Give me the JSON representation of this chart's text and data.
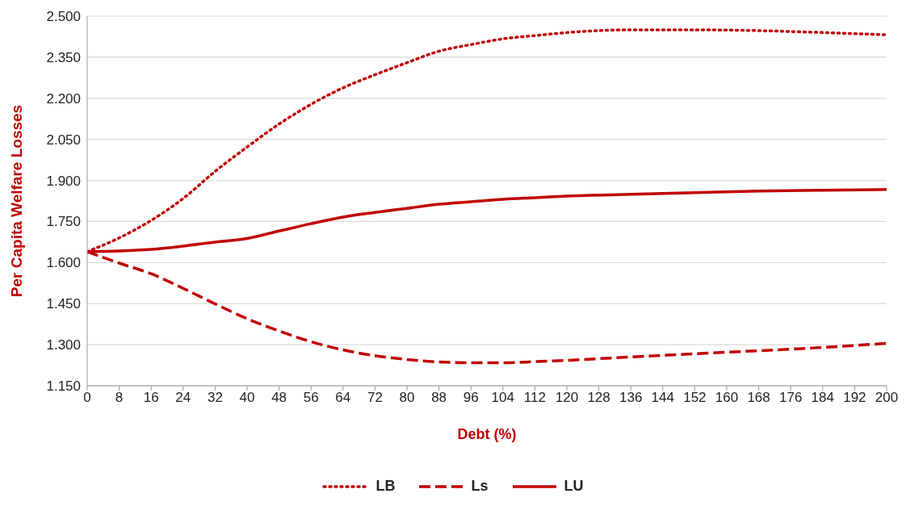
{
  "chart_data": {
    "type": "line",
    "xlabel": "Debt (%)",
    "ylabel": "Per Capita Welfare Losses",
    "x": [
      0,
      8,
      16,
      24,
      32,
      40,
      48,
      56,
      64,
      72,
      80,
      88,
      96,
      104,
      112,
      120,
      136,
      152,
      168,
      184,
      200
    ],
    "series": [
      {
        "name": "LB",
        "color": "#c00000",
        "line_style": "dotted",
        "values": [
          1.64,
          1.69,
          1.754,
          1.834,
          1.933,
          2.022,
          2.106,
          2.178,
          2.238,
          2.286,
          2.33,
          2.372,
          2.396,
          2.417,
          2.429,
          2.44,
          2.45,
          2.45,
          2.447,
          2.44,
          2.432
        ]
      },
      {
        "name": "Ls",
        "color": "#c00000",
        "line_style": "dashed",
        "values": [
          1.64,
          1.598,
          1.559,
          1.506,
          1.449,
          1.395,
          1.35,
          1.311,
          1.281,
          1.26,
          1.246,
          1.237,
          1.234,
          1.234,
          1.238,
          1.243,
          1.255,
          1.267,
          1.278,
          1.29,
          1.305
        ]
      },
      {
        "name": "LU",
        "color": "#c00000",
        "line_style": "solid",
        "values": [
          1.64,
          1.642,
          1.648,
          1.66,
          1.675,
          1.688,
          1.715,
          1.742,
          1.766,
          1.783,
          1.798,
          1.813,
          1.822,
          1.831,
          1.837,
          1.843,
          1.849,
          1.855,
          1.861,
          1.864,
          1.867
        ]
      }
    ],
    "xlim": [
      0,
      200
    ],
    "xticks": [
      0,
      8,
      16,
      24,
      32,
      40,
      48,
      56,
      64,
      72,
      80,
      88,
      96,
      104,
      112,
      120,
      128,
      136,
      144,
      152,
      160,
      168,
      176,
      184,
      192,
      200
    ],
    "ylim": [
      1.15,
      2.5
    ],
    "yticks": [
      {
        "value": 1.15,
        "label": "1.150"
      },
      {
        "value": 1.3,
        "label": "1.300"
      },
      {
        "value": 1.45,
        "label": "1.450"
      },
      {
        "value": 1.6,
        "label": "1.600"
      },
      {
        "value": 1.75,
        "label": "1.750"
      },
      {
        "value": 1.9,
        "label": "1.900"
      },
      {
        "value": 2.05,
        "label": "2.050"
      },
      {
        "value": 2.2,
        "label": "2.200"
      },
      {
        "value": 2.35,
        "label": "2.350"
      },
      {
        "value": 2.5,
        "label": "2.500"
      }
    ],
    "grid": "y",
    "legend": "bottom",
    "marker": "none"
  }
}
